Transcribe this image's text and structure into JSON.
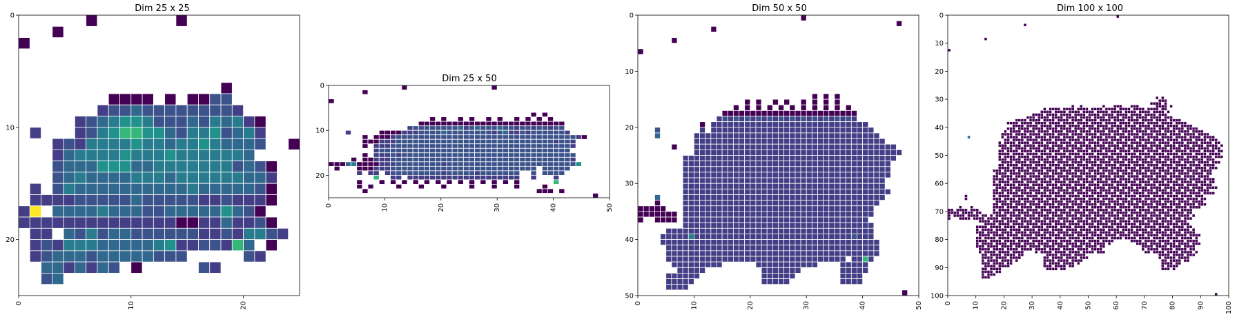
{
  "figure": {
    "background": "#ffffff"
  },
  "colors": {
    "dark_purple": "#440154",
    "indigo": "#433e85",
    "blue": "#3b528b",
    "steel_blue": "#31688e",
    "teal_blue": "#287c8e",
    "teal": "#21918c",
    "green_teal": "#20a386",
    "green": "#35b779",
    "light_green": "#75d054",
    "yellow_green": "#a5db36",
    "yellow": "#fde725",
    "cell_edge": "#ffffff"
  },
  "chart_data": [
    {
      "type": "heatmap",
      "title": "Dim 25 x 25",
      "nrows": 25,
      "ncols": 25,
      "xlim": [
        0,
        25
      ],
      "ylim": [
        25,
        0
      ],
      "xticks": [
        0,
        10,
        20
      ],
      "yticks": [
        0,
        10,
        20
      ],
      "xtick_rotation": "vertical",
      "colormap": "viridis",
      "grid": false,
      "legend": "none",
      "rows": [
        "......0.......0..........",
        "...0.....................",
        "0........................",
        ".........................",
        ".........................",
        ".........................",
        "..................0......",
        "........0000.0.0022......",
        ".......1223222222221.....",
        ".....12345542223243410...",
        ".1...12456655324452341...",
        "...1214444544344543332..0",
        "...134444544454444443....",
        "...23335553344444442320..",
        "...23433334443444444331..",
        ".1.24333333333343333320..",
        ".1111222223222221121110..",
        "18.3333433322333335320...",
        "11111111111111001131120..",
        ".11.32423322222211214421.",
        ".12144433333451122163.0..",
        ".12333233333222.....21...",
        "..3313132.0.....21.......",
        "..23.....................",
        "........................."
      ]
    },
    {
      "type": "heatmap",
      "title": "Dim 25 x 50",
      "nrows": 25,
      "ncols": 50,
      "xlim": [
        0,
        50
      ],
      "ylim": [
        25,
        0
      ],
      "xticks": [
        0,
        10,
        20,
        30,
        40,
        50
      ],
      "yticks": [
        0,
        10,
        20
      ],
      "xtick_rotation": "vertical",
      "colormap": "viridis",
      "grid": false,
      "legend": "none",
      "rows": [
        ".............0...............0....................",
        "......0...........................................",
        "..................................................",
        "0.................................................",
        "..................................................",
        "..................................................",
        "....................................0.0...........",
        "..................0.0..0.0..0.0..0.0.0.0...........",
        "................00000000000000000000000000.........",
        "..............1222222223123222322122122122.........",
        "...1.....0000111222232222222212311212222221........",
        "......0.00012222222222222222222222222222222210.....",
        "......00011122222222222222222222222222221221.......",
        "......0.111222222222222222222222222222222221.......",
        "........12222222222222222222222222222222222........",
        "......0.111212222222222222222222222222222222.......",
        "....0.00111222222222222222222222222222222221.......",
        "000340000111222222221222222222222222222222225......",
        ".0...00011122222222222222222222222222.22222........",
        ".....1.11.122222222212222212222222..2.2222.........",
        "........6..11.11111111111111111111..1...1..........",
        ".....0...0.0.0.0.0.0.0.0.0.0.0.0.0......7..........",
        ".....0.0....0...0...0....0...0...0....0............",
        "......0..............................000.0.........",
        "...............................................0.."
      ]
    },
    {
      "type": "heatmap",
      "title": "Dim 50 x 50",
      "nrows": 50,
      "ncols": 50,
      "xlim": [
        0,
        50
      ],
      "ylim": [
        50,
        0
      ],
      "xticks": [
        0,
        10,
        20,
        30,
        40,
        50
      ],
      "yticks": [
        0,
        10,
        20,
        30,
        40,
        50
      ],
      "xtick_rotation": "vertical",
      "colormap": "viridis",
      "grid": false,
      "legend": "none",
      "rows": [
        ".............................0....................",
        "..............................................0...",
        ".............0....................................",
        "..................................................",
        "......0...........................................",
        "..................................................",
        "0.................................................",
        "..................................................",
        "..................................................",
        "..................................................",
        "..................................................",
        "..................................................",
        "..................................................",
        "..................................................",
        "...............................0.0.0..............",
        "...................0.0..0.0..0.0.0.0..............",
        ".................0.0.0.0.0.0.0.0.0.0.0............",
        "...............000000000000000000000000...........",
        "..............1212121212121212121212121...........",
        "...........0.1111111111111111111111111111.........",
        "...2.......1.11111111111111111111111111111........",
        "...3......111111111111111111111111111111111.......",
        "..........1111111111111111111111111111111111......",
        "......0...111111111111111111111111111111111111....",
        "..........1111111111111111111111111111111111111...",
        "........11111111111111111111111111111111111111....",
        "........1111111111111111111111111111111111111.....",
        "........1111111111111111111111111111111111111.....",
        "........1111111111111111111111111111111111111.....",
        "........111111111111111111111111111111111111......",
        "........111111111111111111111111111111111111......",
        "........1111111111111111111111111111111111111.....",
        "...3....111111111111111111111111111111111111......",
        "...0....11111111111111111111111111111111111.......",
        "00000...1111111111111111111111111111111111........",
        "0000000.1111111111111111111111111111111111........",
        "0..0000.111111111111111111111111111111111.........",
        "........1111111111111111111111111111111111........",
        ".....1111111111111111111111111111111111111........",
        "....11111411111111111111111111111111112111........",
        "....111111111111111111111111111111111111111.......",
        ".....11111111111111111111111111111111111111.......",
        ".....11111111111111111111111111111111111111.......",
        ".....11111111111111111111111111111111.1161........",
        "......111111111......11111111111....11111.........",
        ".......11111..........1111111.......11111.........",
        ".....111111...........111111........1111..........",
        ".....11111............11111.........1111..........",
        ".....1111.........................................",
        "...............................................0.."
      ]
    },
    {
      "type": "heatmap",
      "title": "Dim 100 x 100",
      "nrows": 100,
      "ncols": 100,
      "xlim": [
        0,
        100
      ],
      "ylim": [
        100,
        0
      ],
      "xticks": [
        0,
        10,
        20,
        30,
        40,
        50,
        60,
        70,
        80,
        90,
        100
      ],
      "yticks": [
        0,
        10,
        20,
        30,
        40,
        50,
        60,
        70,
        80,
        90,
        100
      ],
      "xtick_rotation": "vertical",
      "colormap": "viridis",
      "grid": false,
      "legend": "none",
      "mask_seed": 7,
      "rows": [
        "............................................................0.......................................",
        "..........................................................................................................",
        "..........................................................................................................",
        "...........................0........................................................................",
        "..........................................................................................................",
        "..........................................................................................................",
        "..........................................................................................................",
        "..........................................................................................................",
        ".............0............................................................................................",
        "..........................................................................................................",
        "..........................................................................................................",
        "..........................................................................................................",
        "0.........................................................................................................",
        "..........................................................................................................",
        "..........................................................................................................",
        "..........................................................................................................",
        "..........................................................................................................",
        "..........................................................................................................",
        "..........................................................................................................",
        "..........................................................................................................",
        "..........................................................................................................",
        "..........................................................................................................",
        "..........................................................................................................",
        "..........................................................................................................",
        "..........................................................................................................",
        "..........................................................................................................",
        "..........................................................................................................",
        "..........................................................................................................",
        "..........................................................................................................",
        "..........................................................................0.0.............................",
        "..........................................................................0000..........................",
        "........................................................................000000........................",
        "............................................0..0.....0.0...000.0.000.....0000000.......................",
        "..................................00000000000000000000000000000000000000000000........................",
        ".................................0000000000000000000000000000000000000000000000.......................",
        "..............................000000000000000000000000000000000000000000000000.......................",
        "............................0000000000000000000000000000000000000000000000000000.....................",
        "........................00000000000000000000000000000000000000000000000000000000000...................",
        ".....................00000000000000000000000000000000000000000000000000000000000000000................",
        "......................000000000000000000000000000000000000000000000000000000000000000000..............",
        ".....................00000000000000000000000000000000000000000000000000000000000000000000.............",
        "....................000000000000000000000000000000000000000000000000000000000000000000000000..........",
        "..................000000000000000000000000000000000000000000000000000000000000000000000000000.........",
        ".......3...........00000000000000000000000000000000000000000000000000000000000000000000000000000......",
        "....................0000000000000000000000000000000000000000000000000000000000000000000000000000.....",
        "..................0000000000000000000000000000000000000000000000000000000000000000000000000000000....",
        "..................00000000000000000000000000000000000000000000000000000000000000000000000000000000...",
        "..................0000000000000000000000000000000000000000000000000000000000000000000000000000000.....",
        "..................00000000000000000000000000000000000000000000000000000000000000000000000000000000...",
        "..................0000000000000000000000000000000000000000000000000000000000000000000000000000000....",
        "..................00000000000000000000000000000000000000000000000000000000000000000000000000000000...",
        "..................00000000000000000000000000000000000000000000000000000000000000000000000000000.......",
        "..................0000000000000000000000000000000000000000000000000000000000000000000000000000000.....",
        "..................000000000000000000000000000000000000000000000000000000000000000000000000000000......",
        ".................0000000000000000000000000000000000000000000000000000000000000000000000000000000......",
        "................0000000000000000000000000000000000000000000000000000000000000000000000000000000.......",
        "................000000000000000000000000000000000000000000000000000000000000000000000000000000........",
        "................000000000000000000000000000000000000000000000000000000000000000000000000000000........",
        "................00000000000000000000000000000000000000000000000000000000000000000000000000000000......",
        "................0000000000000000000000000000000000000000000000000000000000000000000000000000000.......",
        "................0000000000000000000000000000000000000000000000000000000000000000000000000000000.......",
        "................00000000000000000000000000000000000000000000000000000000000000000000000000000000......",
        "................000000000000000000000000000000000000000000000000000000000000000000000000000000........",
        ".....0..........0000000000000000000000000000000000000000000000000000000000000000000000000000000.......",
        "......0.........000000000000000000000000000000000000000000000000000000000000000000000000000..........",
        "......0.........0000000000000000000000000000000000000000000000000000000000000000000000000000.........",
        "................000000000000000000000000000000000000000000000000000000000000000000000000000..........",
        "................0000000000000000000000000000000000000000000000000000000000000000000000000000.........",
        "....0...0.......00000000000000000000000000000000000000000000000000000000000000000000000000...........",
        "00000000000.....000000000000000000000000000000000000000000000000000000000000000000000000............",
        "000000000000....00000000000000000000000000000000000000000000000000000000000000000000000.............",
        "00000000000000.0000000000000000000000000000000000000000000000000000000000000000000000000.............",
        "0...00000000000000000000000000000000000000000000000000000000000000000000000000000000000..............",
        "...........000000000000000000000000000000000000000000000000000000000000000000000000000..............",
        "............00000000000000000000000000000000000000000000000000000000000000000000000000...............",
        "..........00000000000000000000000000000000000000000000000000000000000000000000000000000..............",
        "..........000000000000000000000000000000000000000000000000000000000000000000000000000000.............",
        "..........0000000000000000000000000000000000000000000000000000000000000000000000000000000............",
        "..........000000000000000000000000000000000000000000000000000000000000000000000000000000000..........",
        "..........0000000000000000000000000000000000000000000000000000000000000000000000000000000............",
        "..........00000000000000000000000000000000000000000000000000.....0000000000000000000000000............",
        "..........000000000000000000000000000000000000000000000000.........00000000000000000000000............",
        "..........0000000000000000000000000000000000000000000000............000000000000000000000............",
        "..........0000000000000000000000000000000000000000000000.............0000000000000000000.............",
        "...........00000000000000000...0000000000000000000000000..............0000000000000000000............",
        "............000000000000000.......0000000000000000.........................0000000000000.............",
        "............000000000000000.......0000000000000000.........................00000000000..............",
        "............0000000000000.........00000000000000............................0000000000..............",
        "............00000000000...........0000000000000.............................0000000..................",
        "............0000000000............00000000000...............................000000...................",
        "............00000000..............00000000..................................00000....................",
        "............0000000.............................................................................",
        "............00000........................................................................................",
        "............0000.........................................................................................",
        "..........................................................................................................",
        "..........................................................................................................",
        "..........................................................................................................",
        "..........................................................................................................",
        "..........................................................................................................",
        "...............................................................................................0..........",
        ".........................................................................................................."
      ]
    }
  ]
}
